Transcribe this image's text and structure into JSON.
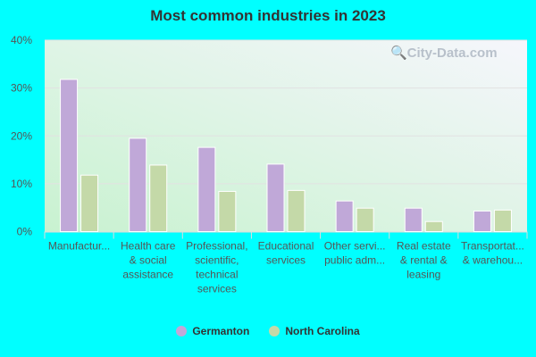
{
  "chart_data": {
    "type": "bar",
    "title": "Most common industries in 2023",
    "categories": [
      [
        "Manufactur..."
      ],
      [
        "Health care",
        "& social",
        "assistance"
      ],
      [
        "Professional,",
        "scientific,",
        "technical",
        "services"
      ],
      [
        "Educational",
        "services"
      ],
      [
        "Other servi...",
        "public adm..."
      ],
      [
        "Real estate",
        "& rental &",
        "leasing"
      ],
      [
        "Transportat...",
        "& warehou..."
      ]
    ],
    "series": [
      {
        "name": "Germanton",
        "color": "#c0a8d8",
        "values": [
          31.8,
          19.5,
          17.6,
          14.1,
          6.4,
          4.9,
          4.3
        ]
      },
      {
        "name": "North Carolina",
        "color": "#c4d9a8",
        "values": [
          11.8,
          13.9,
          8.4,
          8.6,
          4.9,
          2.1,
          4.5
        ]
      }
    ],
    "ylim": [
      0,
      40
    ],
    "yticks": [
      "0%",
      "10%",
      "20%",
      "30%",
      "40%"
    ],
    "grid": true,
    "legend": "bottom",
    "watermark": "City-Data.com"
  }
}
